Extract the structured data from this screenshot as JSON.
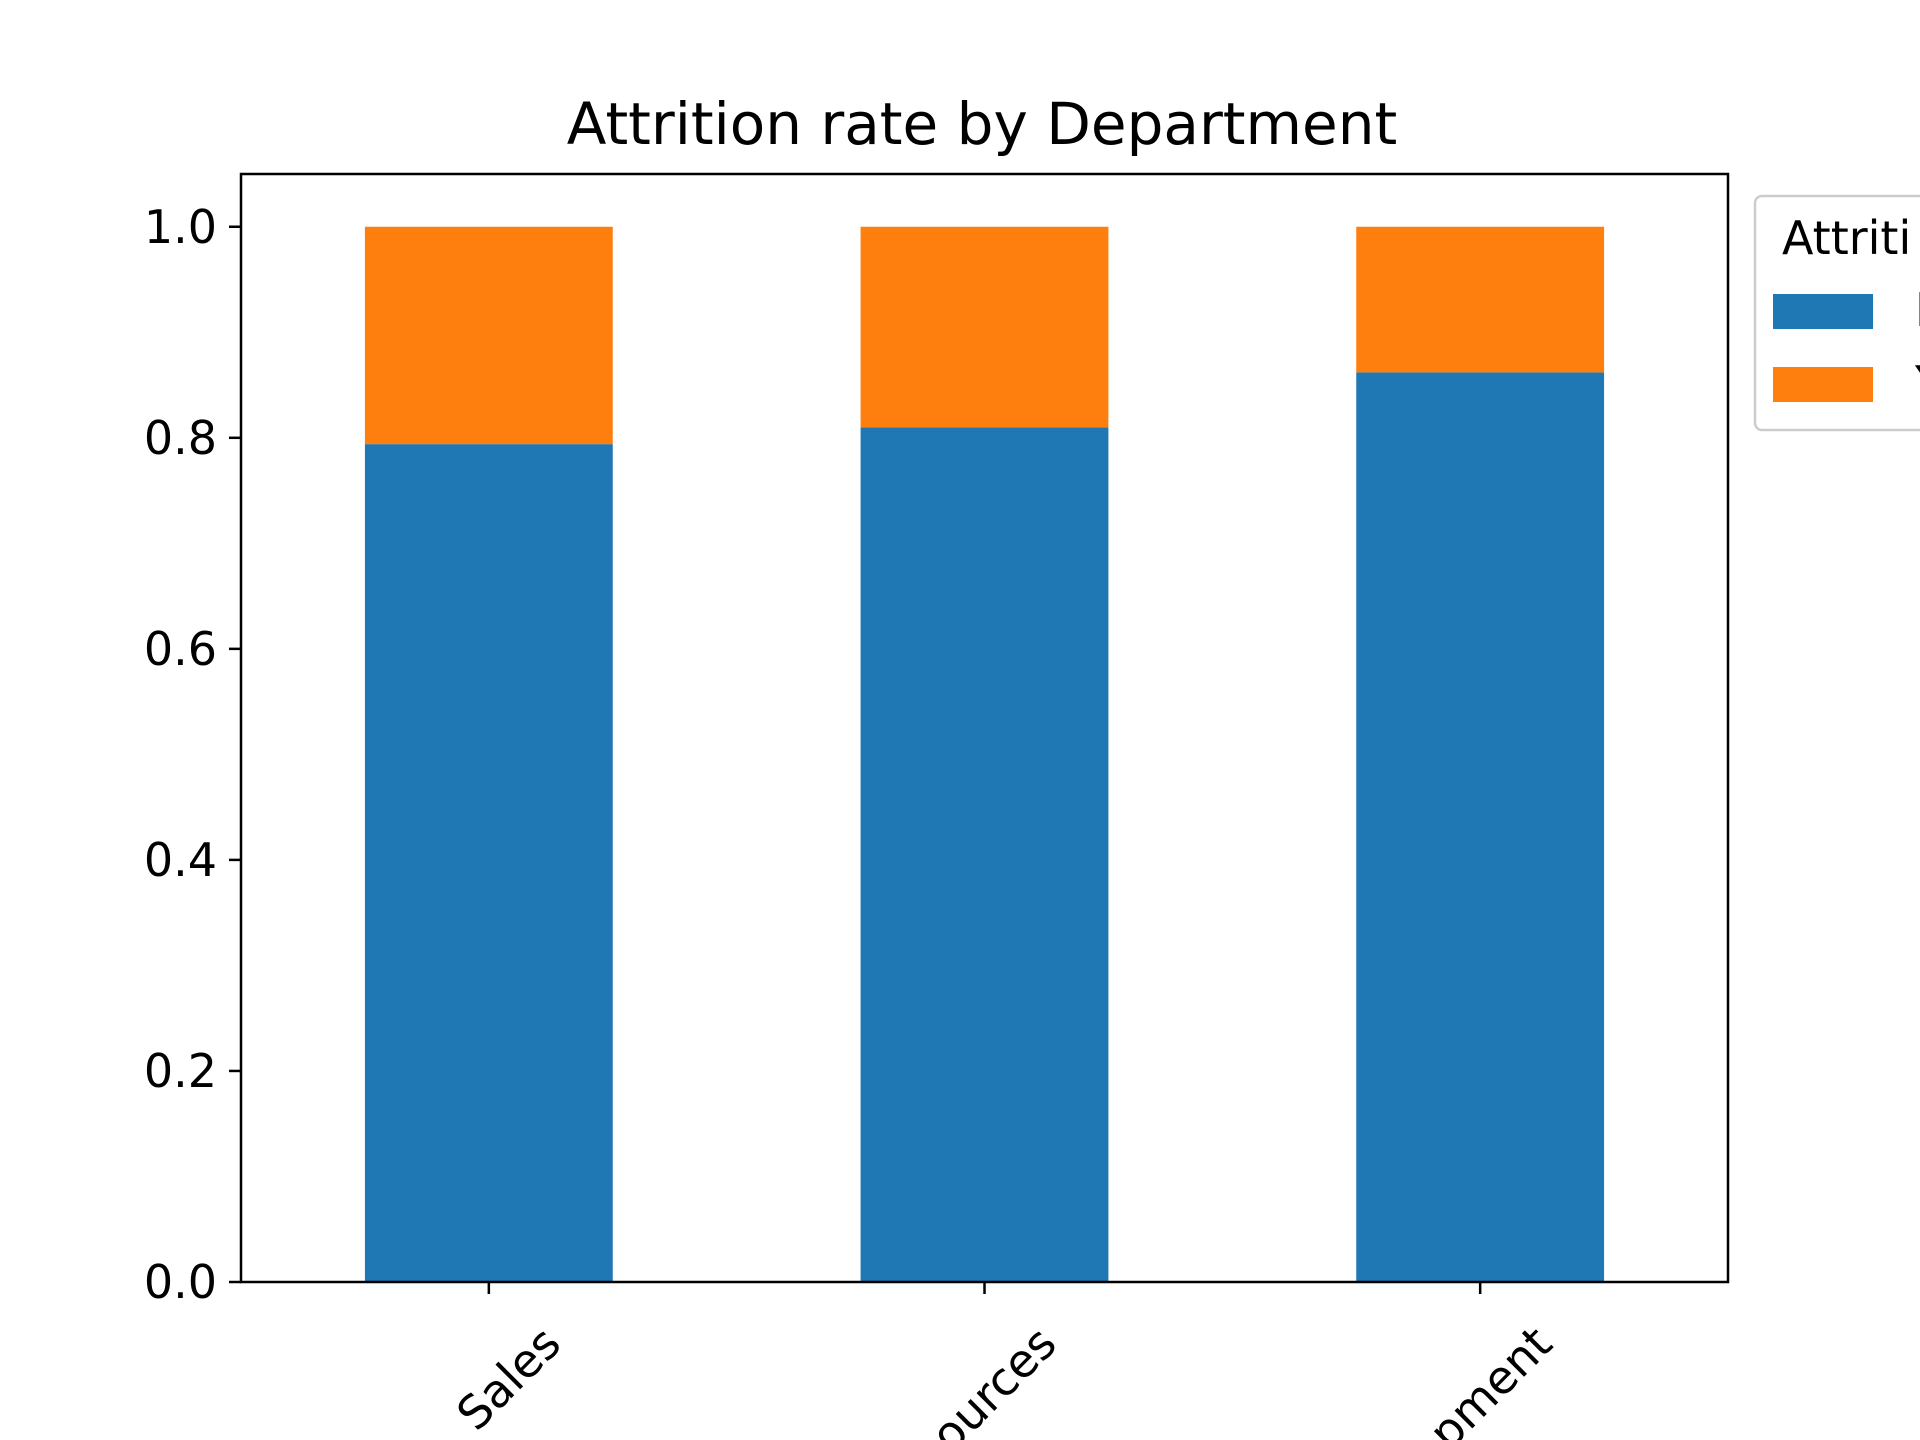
{
  "chart_data": {
    "type": "bar",
    "stacked": true,
    "title": "Attrition rate by Department",
    "xlabel": "",
    "ylabel": "",
    "categories": [
      "Sales",
      "Research & Development",
      "Human Resources"
    ],
    "category_labels_visible": [
      "Sales",
      "ources",
      "pment"
    ],
    "series": [
      {
        "name": "No",
        "values": [
          0.794,
          0.81,
          0.862
        ]
      },
      {
        "name": "Yes",
        "values": [
          0.206,
          0.19,
          0.138
        ]
      }
    ],
    "ylim": [
      0,
      1.05
    ],
    "yticks": [
      "0.0",
      "0.2",
      "0.4",
      "0.6",
      "0.8",
      "1.0"
    ],
    "grid": false,
    "legend": {
      "title": "Attriti",
      "position": "top-right outside",
      "labels_visible": [
        "N",
        "Y"
      ]
    },
    "colors": {
      "No": "#1f77b4",
      "Yes": "#ff7f0e"
    }
  }
}
